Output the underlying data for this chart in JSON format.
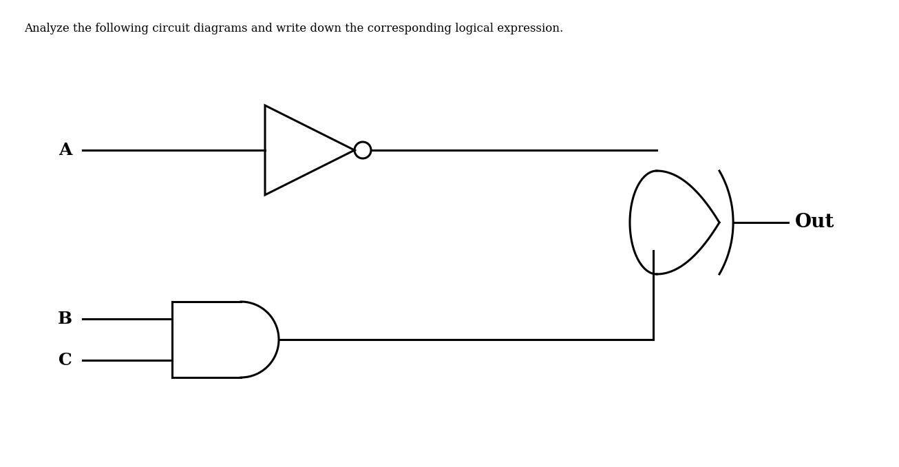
{
  "title_text": "Analyze the following circuit diagrams and write down the corresponding logical expression.",
  "title_fontsize": 12,
  "figsize": [
    13.06,
    6.78
  ],
  "dpi": 100,
  "bg_color": "#ffffff",
  "line_color": "#000000",
  "lw": 2.2,
  "label_A": "A",
  "label_B": "B",
  "label_C": "C",
  "label_Out": "Out",
  "label_fontsize": 18,
  "label_fontweight": "bold"
}
